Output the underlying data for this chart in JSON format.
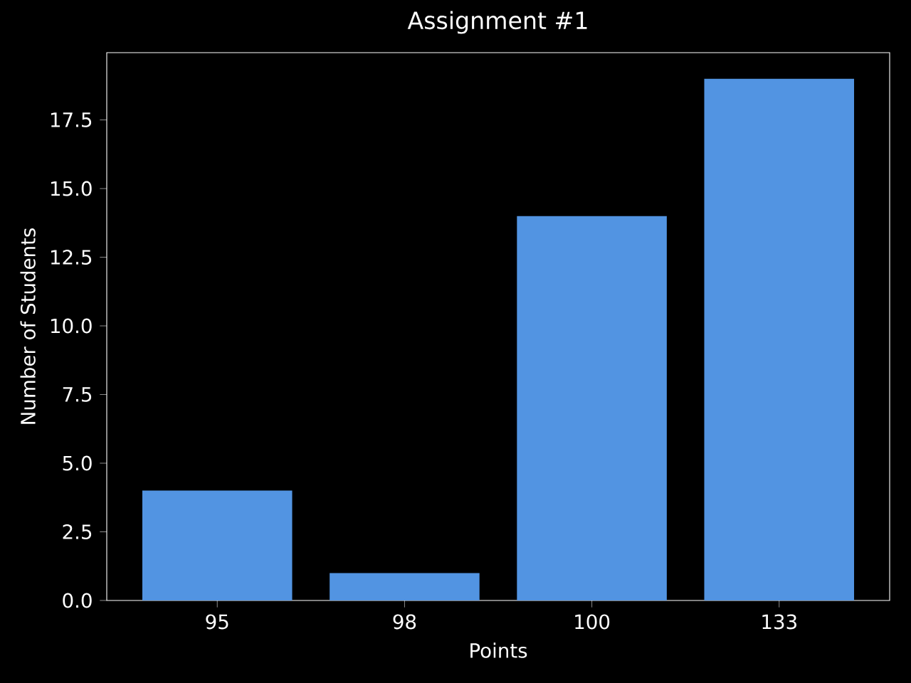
{
  "chart_data": {
    "type": "bar",
    "title": "Assignment #1",
    "xlabel": "Points",
    "ylabel": "Number of Students",
    "categories": [
      "95",
      "98",
      "100",
      "133"
    ],
    "values": [
      4,
      1,
      14,
      19
    ],
    "color": "#5294e2",
    "ylim": [
      0,
      19.95
    ],
    "yticks": [
      {
        "value": 0,
        "label": "0.0"
      },
      {
        "value": 2.5,
        "label": "2.5"
      },
      {
        "value": 5,
        "label": "5.0"
      },
      {
        "value": 7.5,
        "label": "7.5"
      },
      {
        "value": 10,
        "label": "10.0"
      },
      {
        "value": 12.5,
        "label": "12.5"
      },
      {
        "value": 15,
        "label": "15.0"
      },
      {
        "value": 17.5,
        "label": "17.5"
      }
    ]
  }
}
